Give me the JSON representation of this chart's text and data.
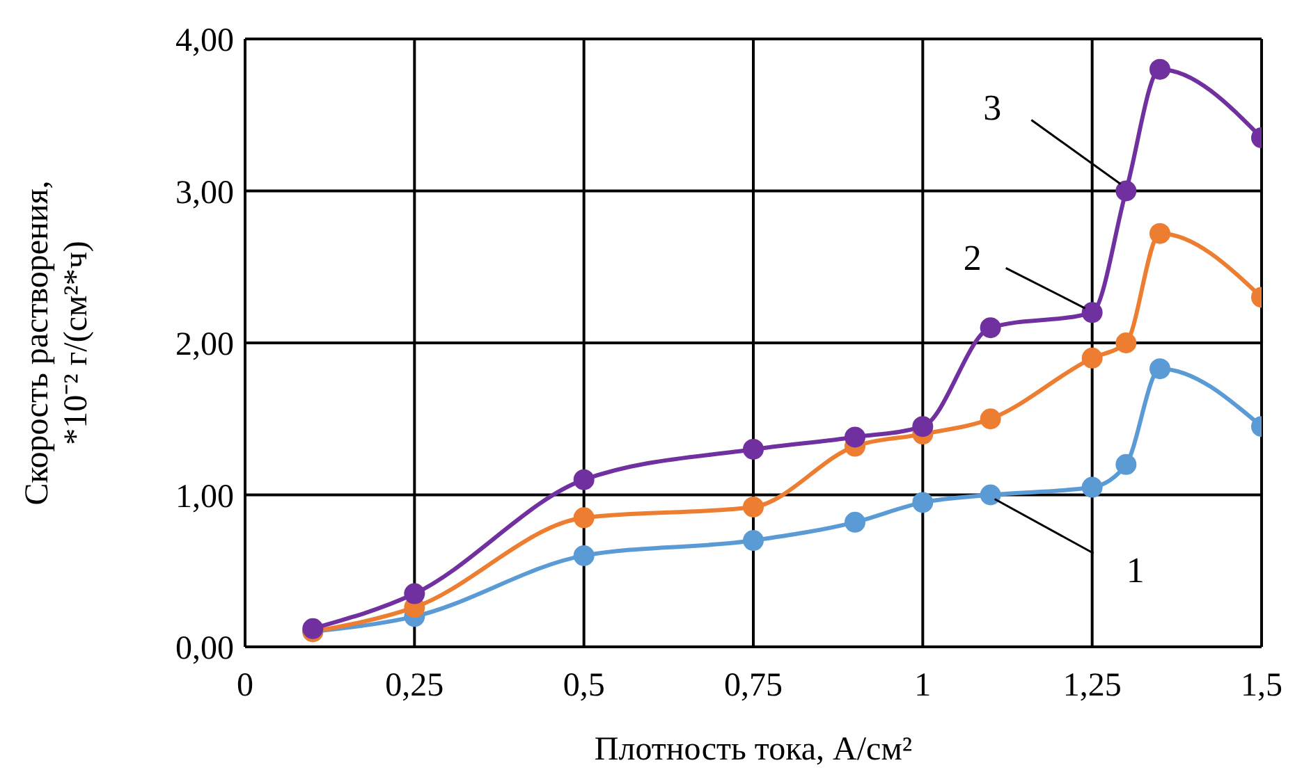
{
  "chart_data": {
    "type": "line",
    "xlabel": "Плотность тока, А/см²",
    "ylabel": "Скорость растворения,\n*10⁻²  г/(см²*ч)",
    "x": [
      0.1,
      0.25,
      0.5,
      0.75,
      0.9,
      1,
      1.1,
      1.25,
      1.3,
      1.35,
      1.5
    ],
    "series": [
      {
        "color": "#5b9bd5",
        "values": [
          0.1,
          0.2,
          0.6,
          0.7,
          0.82,
          0.95,
          1.0,
          1.05,
          1.2,
          1.83,
          1.45
        ]
      },
      {
        "color": "#ed7d31",
        "values": [
          0.1,
          0.26,
          0.85,
          0.92,
          1.32,
          1.4,
          1.5,
          1.9,
          2.0,
          2.72,
          2.3
        ]
      },
      {
        "color": "#7030a0",
        "values": [
          0.12,
          0.35,
          1.1,
          1.3,
          1.38,
          1.45,
          2.1,
          2.2,
          3.0,
          3.8,
          3.35
        ]
      }
    ],
    "annotations": [
      {
        "text": "1",
        "x": 1.1,
        "y": 1.0
      },
      {
        "text": "2",
        "x": 1.25,
        "y": 2.2
      },
      {
        "text": "3",
        "x": 1.3,
        "y": 3.0
      }
    ],
    "xlim": [
      0,
      1.5
    ],
    "xticks": [
      0,
      {
        "value": 0.25,
        "label": "0,25"
      },
      {
        "value": 0.5,
        "label": "0,5"
      },
      {
        "value": 0.75,
        "label": "0,75"
      },
      1,
      {
        "value": 1.25,
        "label": "1,25"
      },
      {
        "value": 1.5,
        "label": "1,5"
      }
    ],
    "ylim": [
      0,
      4
    ],
    "yticks": [
      {
        "value": 0,
        "label": "0,00"
      },
      {
        "value": 1,
        "label": "1,00"
      },
      {
        "value": 2,
        "label": "2,00"
      },
      {
        "value": 3,
        "label": "3,00"
      },
      {
        "value": 4,
        "label": "4,00"
      }
    ],
    "grid": true,
    "marker": "circle",
    "line_style": "solid",
    "legend": false
  }
}
